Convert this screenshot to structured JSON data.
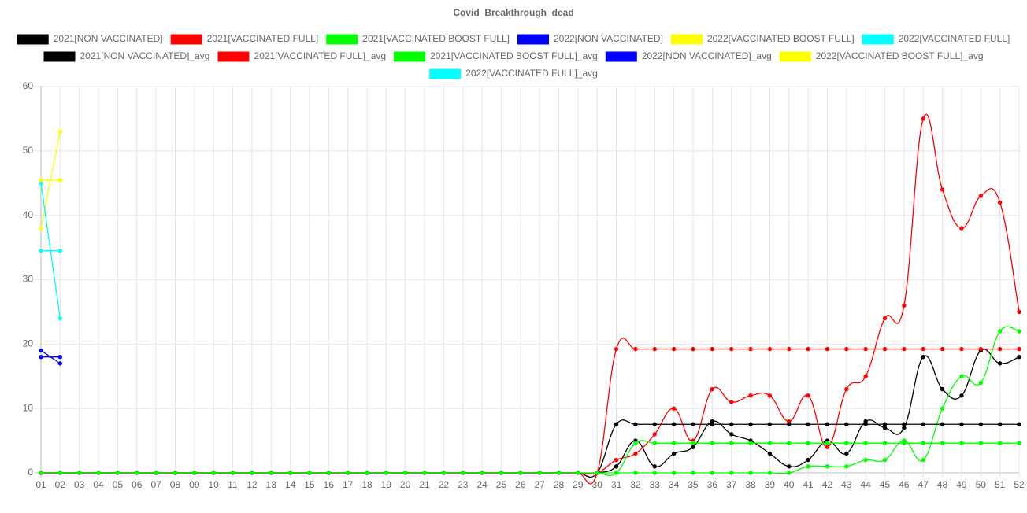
{
  "chart_data": {
    "type": "line",
    "title": "Covid_Breakthrough_dead",
    "categories": [
      "01",
      "02",
      "03",
      "04",
      "05",
      "06",
      "07",
      "08",
      "09",
      "10",
      "11",
      "12",
      "13",
      "14",
      "15",
      "16",
      "17",
      "18",
      "19",
      "20",
      "21",
      "22",
      "23",
      "24",
      "25",
      "26",
      "27",
      "28",
      "29",
      "30",
      "31",
      "32",
      "33",
      "34",
      "35",
      "36",
      "37",
      "38",
      "39",
      "40",
      "41",
      "42",
      "43",
      "44",
      "45",
      "46",
      "47",
      "48",
      "49",
      "50",
      "51",
      "52"
    ],
    "ylim": [
      0,
      60
    ],
    "yticks": [
      0,
      10,
      20,
      30,
      40,
      50,
      60
    ],
    "grid": true,
    "series": [
      {
        "name": "2021[NON VACCINATED]",
        "color": "#000000",
        "values": [
          0,
          0,
          0,
          0,
          0,
          0,
          0,
          0,
          0,
          0,
          0,
          0,
          0,
          0,
          0,
          0,
          0,
          0,
          0,
          0,
          0,
          0,
          0,
          0,
          0,
          0,
          0,
          0,
          0,
          0,
          1,
          5,
          1,
          3,
          4,
          8,
          6,
          5,
          3,
          1,
          2,
          5,
          3,
          8,
          7,
          7,
          18,
          13,
          12,
          19,
          17,
          18
        ]
      },
      {
        "name": "2021[VACCINATED FULL]",
        "color": "#ff0000",
        "values": [
          0,
          0,
          0,
          0,
          0,
          0,
          0,
          0,
          0,
          0,
          0,
          0,
          0,
          0,
          0,
          0,
          0,
          0,
          0,
          0,
          0,
          0,
          0,
          0,
          0,
          0,
          0,
          0,
          0,
          0,
          2,
          3,
          6,
          10,
          5,
          13,
          11,
          12,
          12,
          8,
          12,
          4,
          13,
          15,
          24,
          26,
          55,
          44,
          38,
          43,
          42,
          25
        ]
      },
      {
        "name": "2021[VACCINATED BOOST FULL]",
        "color": "#00ff00",
        "values": [
          0,
          0,
          0,
          0,
          0,
          0,
          0,
          0,
          0,
          0,
          0,
          0,
          0,
          0,
          0,
          0,
          0,
          0,
          0,
          0,
          0,
          0,
          0,
          0,
          0,
          0,
          0,
          0,
          0,
          0,
          0,
          0,
          0,
          0,
          0,
          0,
          0,
          0,
          0,
          0,
          1,
          1,
          1,
          2,
          2,
          5,
          2,
          10,
          15,
          14,
          22,
          22
        ]
      },
      {
        "name": "2022[NON VACCINATED]",
        "color": "#0000ff",
        "values": [
          19,
          17,
          null,
          null,
          null,
          null,
          null,
          null,
          null,
          null,
          null,
          null,
          null,
          null,
          null,
          null,
          null,
          null,
          null,
          null,
          null,
          null,
          null,
          null,
          null,
          null,
          null,
          null,
          null,
          null,
          null,
          null,
          null,
          null,
          null,
          null,
          null,
          null,
          null,
          null,
          null,
          null,
          null,
          null,
          null,
          null,
          null,
          null,
          null,
          null,
          null,
          null
        ]
      },
      {
        "name": "2022[VACCINATED BOOST FULL]",
        "color": "#ffff00",
        "values": [
          38,
          53,
          null,
          null,
          null,
          null,
          null,
          null,
          null,
          null,
          null,
          null,
          null,
          null,
          null,
          null,
          null,
          null,
          null,
          null,
          null,
          null,
          null,
          null,
          null,
          null,
          null,
          null,
          null,
          null,
          null,
          null,
          null,
          null,
          null,
          null,
          null,
          null,
          null,
          null,
          null,
          null,
          null,
          null,
          null,
          null,
          null,
          null,
          null,
          null,
          null,
          null
        ]
      },
      {
        "name": "2022[VACCINATED FULL]",
        "color": "#00ffff",
        "values": [
          45,
          24,
          null,
          null,
          null,
          null,
          null,
          null,
          null,
          null,
          null,
          null,
          null,
          null,
          null,
          null,
          null,
          null,
          null,
          null,
          null,
          null,
          null,
          null,
          null,
          null,
          null,
          null,
          null,
          null,
          null,
          null,
          null,
          null,
          null,
          null,
          null,
          null,
          null,
          null,
          null,
          null,
          null,
          null,
          null,
          null,
          null,
          null,
          null,
          null,
          null,
          null
        ]
      },
      {
        "name": "2021[NON VACCINATED]_avg",
        "color": "#000000",
        "values": [
          0,
          0,
          0,
          0,
          0,
          0,
          0,
          0,
          0,
          0,
          0,
          0,
          0,
          0,
          0,
          0,
          0,
          0,
          0,
          0,
          0,
          0,
          0,
          0,
          0,
          0,
          0,
          0,
          0,
          0,
          7.55,
          7.55,
          7.55,
          7.55,
          7.55,
          7.55,
          7.55,
          7.55,
          7.55,
          7.55,
          7.55,
          7.55,
          7.55,
          7.55,
          7.55,
          7.55,
          7.55,
          7.55,
          7.55,
          7.55,
          7.55,
          7.55
        ]
      },
      {
        "name": "2021[VACCINATED FULL]_avg",
        "color": "#ff0000",
        "values": [
          0,
          0,
          0,
          0,
          0,
          0,
          0,
          0,
          0,
          0,
          0,
          0,
          0,
          0,
          0,
          0,
          0,
          0,
          0,
          0,
          0,
          0,
          0,
          0,
          0,
          0,
          0,
          0,
          0,
          0,
          19.23,
          19.23,
          19.23,
          19.23,
          19.23,
          19.23,
          19.23,
          19.23,
          19.23,
          19.23,
          19.23,
          19.23,
          19.23,
          19.23,
          19.23,
          19.23,
          19.23,
          19.23,
          19.23,
          19.23,
          19.23,
          19.23
        ]
      },
      {
        "name": "2021[VACCINATED BOOST FULL]_avg",
        "color": "#00ff00",
        "values": [
          0,
          0,
          0,
          0,
          0,
          0,
          0,
          0,
          0,
          0,
          0,
          0,
          0,
          0,
          0,
          0,
          0,
          0,
          0,
          0,
          0,
          0,
          0,
          0,
          0,
          0,
          0,
          0,
          0,
          0,
          0,
          4.62,
          4.62,
          4.62,
          4.62,
          4.62,
          4.62,
          4.62,
          4.62,
          4.62,
          4.62,
          4.62,
          4.62,
          4.62,
          4.62,
          4.62,
          4.62,
          4.62,
          4.62,
          4.62,
          4.62,
          4.62
        ]
      },
      {
        "name": "2022[NON VACCINATED]_avg",
        "color": "#0000ff",
        "values": [
          18,
          18,
          null,
          null,
          null,
          null,
          null,
          null,
          null,
          null,
          null,
          null,
          null,
          null,
          null,
          null,
          null,
          null,
          null,
          null,
          null,
          null,
          null,
          null,
          null,
          null,
          null,
          null,
          null,
          null,
          null,
          null,
          null,
          null,
          null,
          null,
          null,
          null,
          null,
          null,
          null,
          null,
          null,
          null,
          null,
          null,
          null,
          null,
          null,
          null,
          null,
          null
        ]
      },
      {
        "name": "2022[VACCINATED BOOST FULL]_avg",
        "color": "#ffff00",
        "values": [
          45.5,
          45.5,
          null,
          null,
          null,
          null,
          null,
          null,
          null,
          null,
          null,
          null,
          null,
          null,
          null,
          null,
          null,
          null,
          null,
          null,
          null,
          null,
          null,
          null,
          null,
          null,
          null,
          null,
          null,
          null,
          null,
          null,
          null,
          null,
          null,
          null,
          null,
          null,
          null,
          null,
          null,
          null,
          null,
          null,
          null,
          null,
          null,
          null,
          null,
          null,
          null,
          null
        ]
      },
      {
        "name": "2022[VACCINATED FULL]_avg",
        "color": "#00ffff",
        "values": [
          34.5,
          34.5,
          null,
          null,
          null,
          null,
          null,
          null,
          null,
          null,
          null,
          null,
          null,
          null,
          null,
          null,
          null,
          null,
          null,
          null,
          null,
          null,
          null,
          null,
          null,
          null,
          null,
          null,
          null,
          null,
          null,
          null,
          null,
          null,
          null,
          null,
          null,
          null,
          null,
          null,
          null,
          null,
          null,
          null,
          null,
          null,
          null,
          null,
          null,
          null,
          null,
          null
        ]
      }
    ]
  }
}
